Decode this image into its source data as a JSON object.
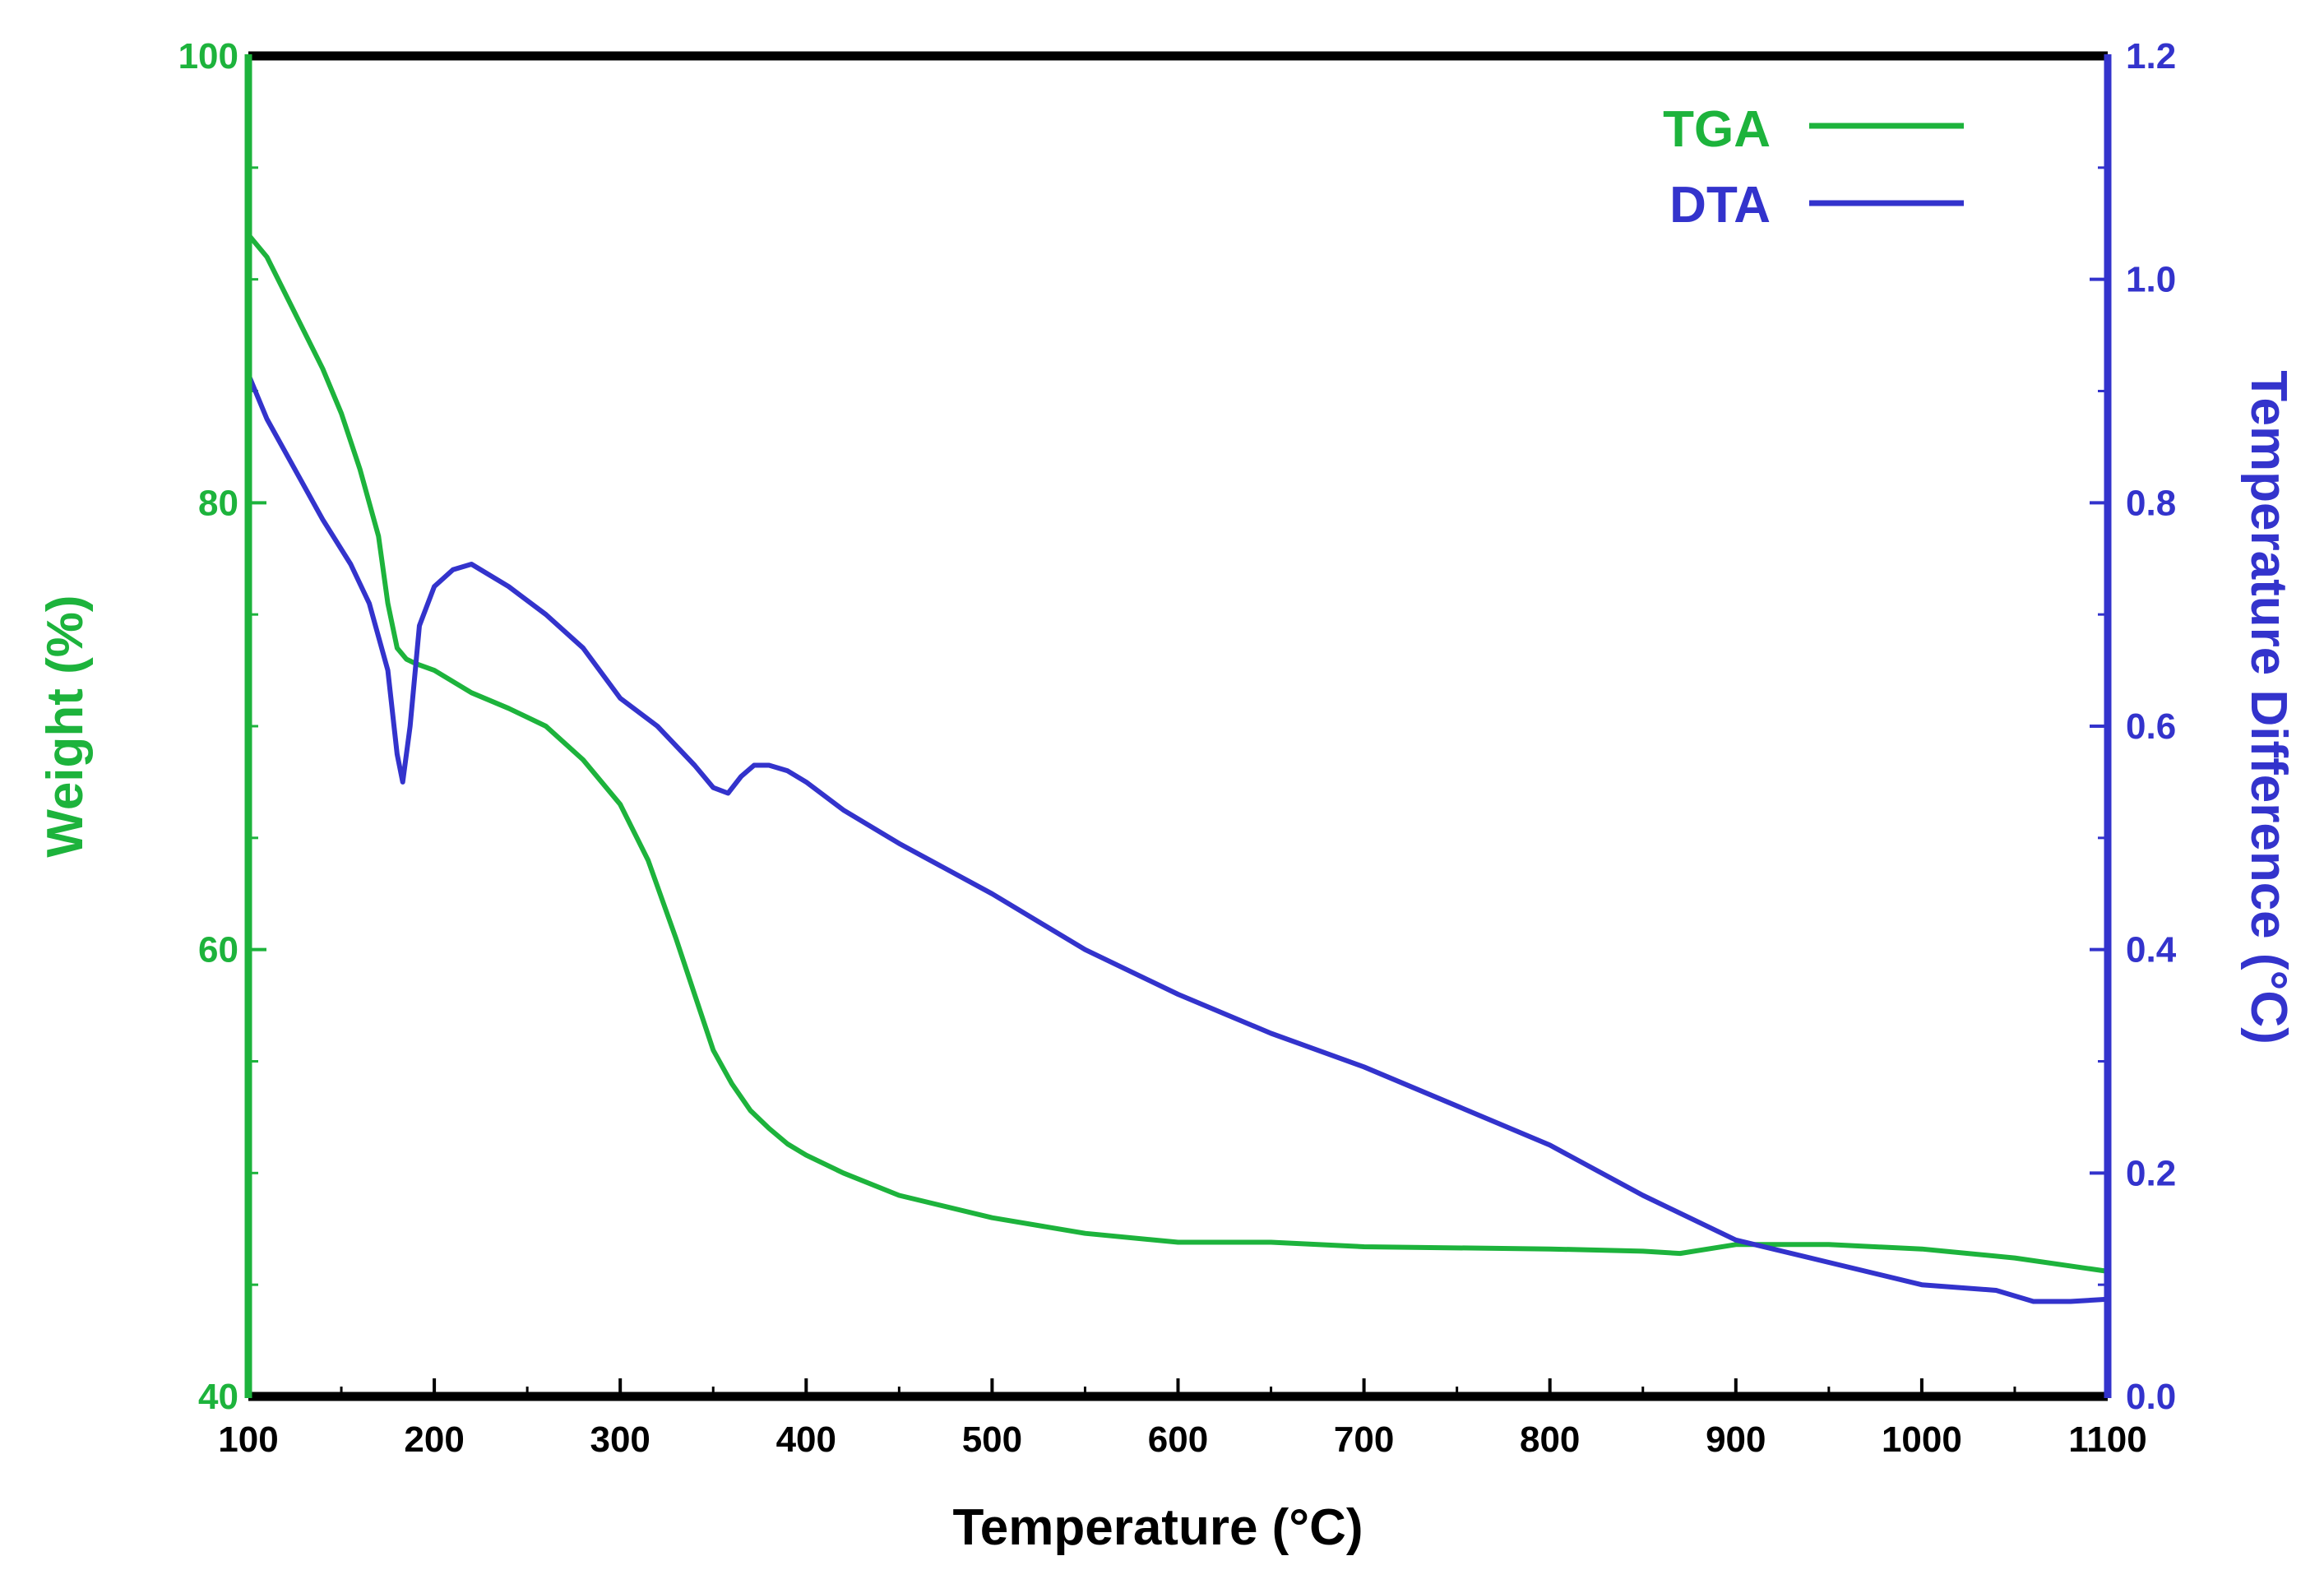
{
  "chart_data": {
    "type": "line",
    "title": "",
    "xlabel": "Temperature (°C)",
    "ylabel_left": "Weight (%)",
    "ylabel_right": "Temperature Difference (°C)",
    "xlim": [
      100,
      1100
    ],
    "ylim_left": [
      40,
      100
    ],
    "ylim_right": [
      0.0,
      1.2
    ],
    "x_ticks": [
      100,
      200,
      300,
      400,
      500,
      600,
      700,
      800,
      900,
      1000,
      1100
    ],
    "x_tick_labels": [
      "100",
      "200",
      "300",
      "400",
      "500",
      "600",
      "700",
      "800",
      "900",
      "1000",
      "1100"
    ],
    "y_left_ticks": [
      40,
      60,
      80,
      100
    ],
    "y_left_tick_labels": [
      "40",
      "60",
      "80",
      "100"
    ],
    "y_right_ticks": [
      0.0,
      0.2,
      0.4,
      0.6,
      0.8,
      1.0,
      1.2
    ],
    "y_right_tick_labels": [
      "0.0",
      "0.2",
      "0.4",
      "0.6",
      "0.8",
      "1.0",
      "1.2"
    ],
    "grid": false,
    "legend_position": "top-right",
    "colors": {
      "tga": "#1db33c",
      "dta": "#3333cc",
      "frame": "#000000",
      "tick_text": "#000000"
    },
    "series": [
      {
        "name": "TGA",
        "axis": "left",
        "color": "#1db33c",
        "x": [
          100,
          110,
          125,
          140,
          150,
          160,
          170,
          175,
          180,
          185,
          190,
          200,
          220,
          240,
          260,
          280,
          300,
          315,
          330,
          340,
          350,
          360,
          370,
          380,
          390,
          400,
          420,
          450,
          500,
          550,
          600,
          650,
          700,
          800,
          850,
          870,
          900,
          950,
          1000,
          1050,
          1100
        ],
        "y": [
          92,
          91,
          88.5,
          86,
          84,
          81.5,
          78.5,
          75.5,
          73.5,
          73,
          72.8,
          72.5,
          71.5,
          70.8,
          70,
          68.5,
          66.5,
          64,
          60.5,
          58,
          55.5,
          54,
          52.8,
          52,
          51.3,
          50.8,
          50,
          49,
          48,
          47.3,
          46.9,
          46.9,
          46.7,
          46.6,
          46.5,
          46.4,
          46.8,
          46.8,
          46.6,
          46.2,
          45.6
        ]
      },
      {
        "name": "DTA",
        "axis": "right",
        "color": "#3333cc",
        "x": [
          100,
          110,
          125,
          140,
          155,
          165,
          175,
          180,
          183,
          187,
          192,
          200,
          210,
          220,
          240,
          260,
          280,
          300,
          320,
          340,
          350,
          358,
          365,
          372,
          380,
          390,
          400,
          420,
          450,
          500,
          550,
          600,
          650,
          700,
          750,
          800,
          850,
          900,
          950,
          1000,
          1040,
          1060,
          1080,
          1100
        ],
        "y": [
          0.915,
          0.875,
          0.83,
          0.785,
          0.745,
          0.71,
          0.65,
          0.575,
          0.55,
          0.6,
          0.69,
          0.725,
          0.74,
          0.745,
          0.725,
          0.7,
          0.67,
          0.625,
          0.6,
          0.565,
          0.545,
          0.54,
          0.555,
          0.565,
          0.565,
          0.56,
          0.55,
          0.525,
          0.495,
          0.45,
          0.4,
          0.36,
          0.325,
          0.295,
          0.26,
          0.225,
          0.18,
          0.14,
          0.12,
          0.1,
          0.095,
          0.085,
          0.085,
          0.087
        ]
      }
    ]
  }
}
